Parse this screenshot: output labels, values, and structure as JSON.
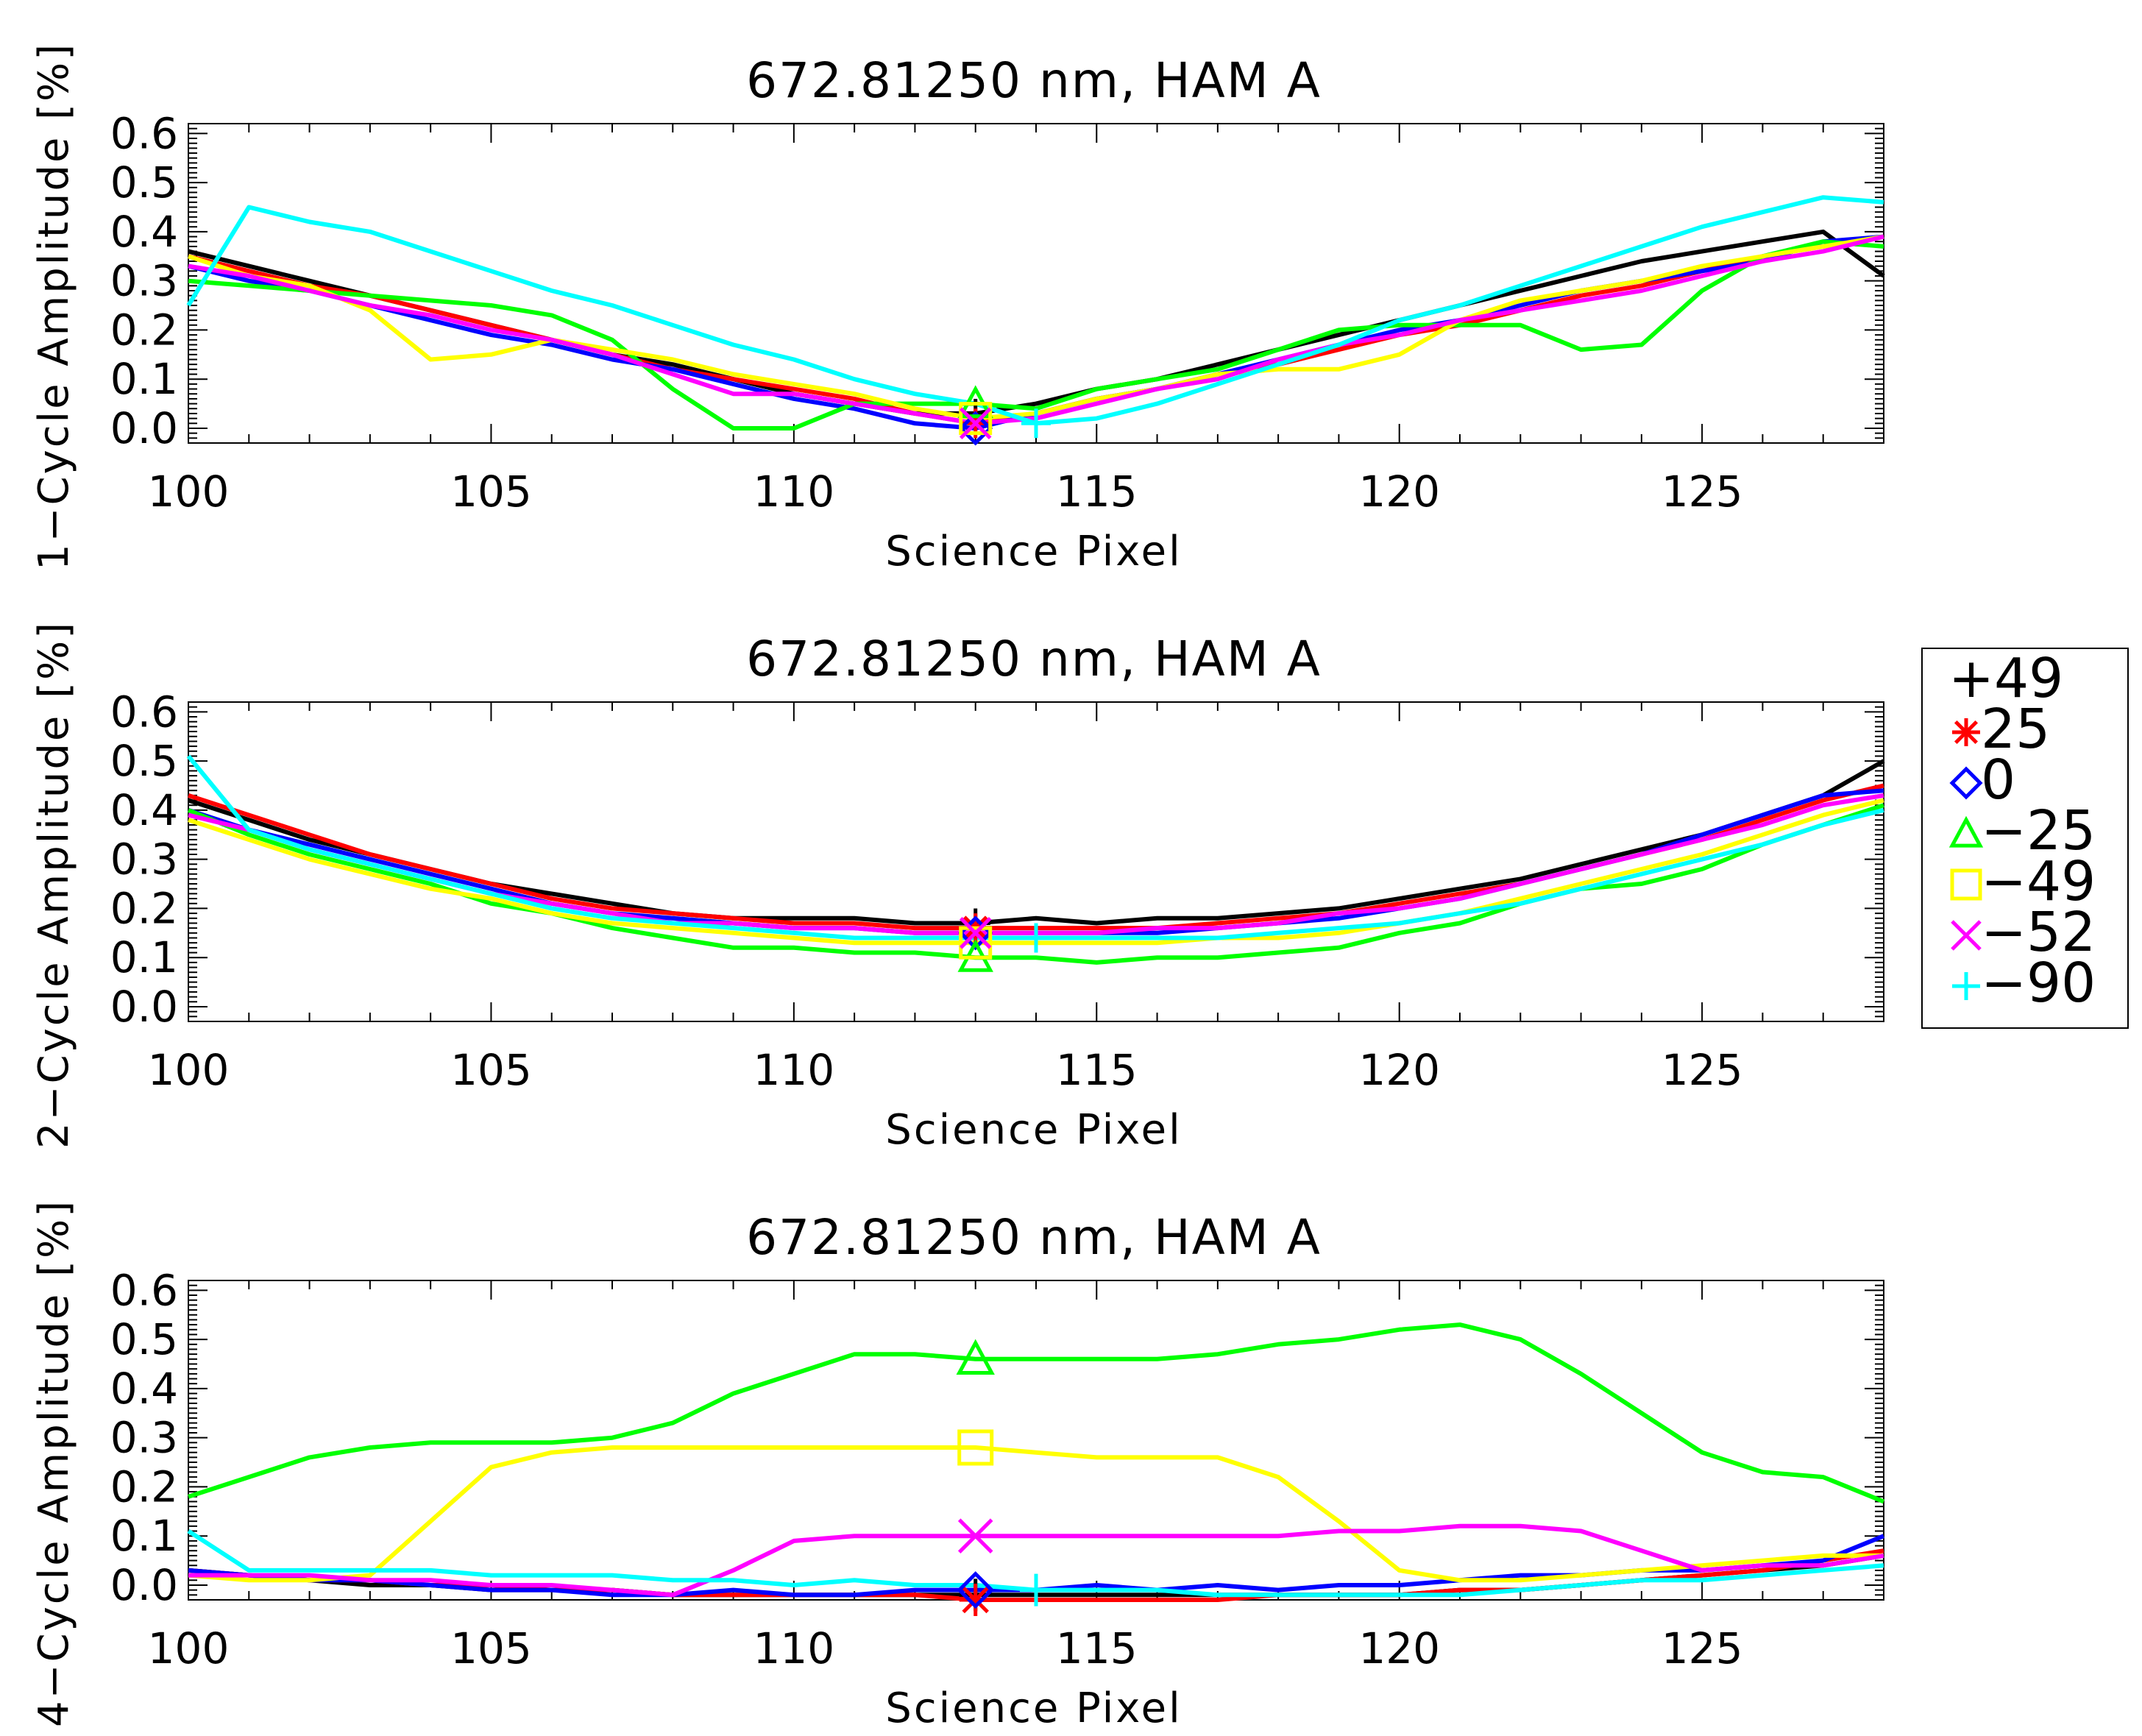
{
  "chart_data": [
    {
      "type": "line",
      "title": "672.81250 nm, HAM A",
      "xlabel": "Science Pixel",
      "ylabel": "1−Cycle Amplitude [%]",
      "xlim": [
        100,
        128
      ],
      "ylim": [
        -0.03,
        0.62
      ],
      "xticks": [
        100,
        105,
        110,
        115,
        120,
        125
      ],
      "yticks": [
        0.0,
        0.1,
        0.2,
        0.3,
        0.4,
        0.5,
        0.6
      ],
      "x": [
        100,
        101,
        102,
        103,
        104,
        105,
        106,
        107,
        108,
        109,
        110,
        111,
        112,
        113,
        114,
        115,
        116,
        117,
        118,
        119,
        120,
        121,
        122,
        123,
        124,
        125,
        126,
        127,
        128
      ],
      "marker_x": 113,
      "series": [
        {
          "name": "+49",
          "color": "#000000",
          "marker": "plus",
          "values": [
            0.36,
            0.33,
            0.3,
            0.27,
            0.24,
            0.21,
            0.18,
            0.15,
            0.13,
            0.1,
            0.07,
            0.05,
            0.03,
            0.03,
            0.05,
            0.08,
            0.1,
            0.13,
            0.16,
            0.19,
            0.22,
            0.25,
            0.28,
            0.31,
            0.34,
            0.36,
            0.38,
            0.4,
            0.31
          ]
        },
        {
          "name": "25",
          "color": "#ff0000",
          "marker": "asterisk",
          "values": [
            0.35,
            0.32,
            0.29,
            0.27,
            0.24,
            0.21,
            0.18,
            0.15,
            0.12,
            0.1,
            0.08,
            0.06,
            0.03,
            0.01,
            0.03,
            0.06,
            0.08,
            0.11,
            0.13,
            0.16,
            0.19,
            0.21,
            0.24,
            0.27,
            0.29,
            0.32,
            0.35,
            0.37,
            0.39
          ]
        },
        {
          "name": "0",
          "color": "#0000ff",
          "marker": "diamond",
          "values": [
            0.33,
            0.3,
            0.28,
            0.25,
            0.22,
            0.19,
            0.17,
            0.14,
            0.12,
            0.09,
            0.06,
            0.04,
            0.01,
            0.0,
            0.03,
            0.06,
            0.08,
            0.11,
            0.14,
            0.17,
            0.2,
            0.22,
            0.25,
            0.28,
            0.3,
            0.32,
            0.34,
            0.38,
            0.39
          ]
        },
        {
          "name": "−25",
          "color": "#00ff00",
          "marker": "triangle",
          "values": [
            0.3,
            0.29,
            0.28,
            0.27,
            0.26,
            0.25,
            0.23,
            0.18,
            0.08,
            0.0,
            0.0,
            0.05,
            0.05,
            0.05,
            0.04,
            0.08,
            0.1,
            0.12,
            0.16,
            0.2,
            0.21,
            0.21,
            0.21,
            0.16,
            0.17,
            0.28,
            0.35,
            0.38,
            0.37
          ]
        },
        {
          "name": "−49",
          "color": "#ffff00",
          "marker": "square",
          "values": [
            0.35,
            0.31,
            0.29,
            0.24,
            0.14,
            0.15,
            0.18,
            0.16,
            0.14,
            0.11,
            0.09,
            0.07,
            0.04,
            0.02,
            0.03,
            0.06,
            0.08,
            0.11,
            0.12,
            0.12,
            0.15,
            0.22,
            0.26,
            0.28,
            0.3,
            0.33,
            0.35,
            0.37,
            0.39
          ]
        },
        {
          "name": "−52",
          "color": "#ff00ff",
          "marker": "cross",
          "values": [
            0.33,
            0.31,
            0.28,
            0.25,
            0.23,
            0.2,
            0.18,
            0.15,
            0.11,
            0.07,
            0.07,
            0.05,
            0.03,
            0.01,
            0.02,
            0.05,
            0.08,
            0.1,
            0.14,
            0.17,
            0.19,
            0.22,
            0.24,
            0.26,
            0.28,
            0.31,
            0.34,
            0.36,
            0.39
          ]
        },
        {
          "name": "−90",
          "color": "#00ffff",
          "marker": "plus",
          "values": [
            0.25,
            0.45,
            0.42,
            0.4,
            0.36,
            0.32,
            0.28,
            0.25,
            0.21,
            0.17,
            0.14,
            0.1,
            0.07,
            0.05,
            0.01,
            0.02,
            0.05,
            0.09,
            0.13,
            0.17,
            0.22,
            0.25,
            0.29,
            0.33,
            0.37,
            0.41,
            0.44,
            0.47,
            0.46
          ]
        }
      ]
    },
    {
      "type": "line",
      "title": "672.81250 nm, HAM A",
      "xlabel": "Science Pixel",
      "ylabel": "2−Cycle Amplitude [%]",
      "xlim": [
        100,
        128
      ],
      "ylim": [
        -0.03,
        0.62
      ],
      "xticks": [
        100,
        105,
        110,
        115,
        120,
        125
      ],
      "yticks": [
        0.0,
        0.1,
        0.2,
        0.3,
        0.4,
        0.5,
        0.6
      ],
      "x": [
        100,
        101,
        102,
        103,
        104,
        105,
        106,
        107,
        108,
        109,
        110,
        111,
        112,
        113,
        114,
        115,
        116,
        117,
        118,
        119,
        120,
        121,
        122,
        123,
        124,
        125,
        126,
        127,
        128
      ],
      "marker_x": 113,
      "series": [
        {
          "name": "+49",
          "color": "#000000",
          "marker": "plus",
          "values": [
            0.42,
            0.38,
            0.34,
            0.31,
            0.28,
            0.25,
            0.23,
            0.21,
            0.19,
            0.18,
            0.18,
            0.18,
            0.17,
            0.17,
            0.18,
            0.17,
            0.18,
            0.18,
            0.19,
            0.2,
            0.22,
            0.24,
            0.26,
            0.29,
            0.32,
            0.35,
            0.39,
            0.43,
            0.5
          ]
        },
        {
          "name": "25",
          "color": "#ff0000",
          "marker": "asterisk",
          "values": [
            0.43,
            0.39,
            0.35,
            0.31,
            0.28,
            0.25,
            0.22,
            0.2,
            0.19,
            0.18,
            0.17,
            0.17,
            0.16,
            0.16,
            0.16,
            0.16,
            0.16,
            0.17,
            0.18,
            0.19,
            0.21,
            0.23,
            0.25,
            0.28,
            0.31,
            0.34,
            0.38,
            0.42,
            0.45
          ]
        },
        {
          "name": "0",
          "color": "#0000ff",
          "marker": "diamond",
          "values": [
            0.4,
            0.36,
            0.33,
            0.3,
            0.27,
            0.24,
            0.21,
            0.19,
            0.18,
            0.17,
            0.16,
            0.16,
            0.15,
            0.15,
            0.15,
            0.15,
            0.15,
            0.16,
            0.17,
            0.18,
            0.2,
            0.22,
            0.25,
            0.28,
            0.31,
            0.35,
            0.39,
            0.43,
            0.44
          ]
        },
        {
          "name": "−25",
          "color": "#00ff00",
          "marker": "triangle",
          "values": [
            0.4,
            0.35,
            0.31,
            0.28,
            0.25,
            0.21,
            0.19,
            0.16,
            0.14,
            0.12,
            0.12,
            0.11,
            0.11,
            0.1,
            0.1,
            0.09,
            0.1,
            0.1,
            0.11,
            0.12,
            0.15,
            0.17,
            0.21,
            0.24,
            0.25,
            0.28,
            0.33,
            0.37,
            0.41
          ]
        },
        {
          "name": "−49",
          "color": "#ffff00",
          "marker": "square",
          "values": [
            0.38,
            0.34,
            0.3,
            0.27,
            0.24,
            0.22,
            0.19,
            0.17,
            0.16,
            0.15,
            0.14,
            0.13,
            0.13,
            0.13,
            0.13,
            0.13,
            0.13,
            0.14,
            0.14,
            0.15,
            0.17,
            0.19,
            0.22,
            0.25,
            0.28,
            0.31,
            0.35,
            0.39,
            0.42
          ]
        },
        {
          "name": "−52",
          "color": "#ff00ff",
          "marker": "cross",
          "values": [
            0.39,
            0.36,
            0.32,
            0.29,
            0.26,
            0.23,
            0.21,
            0.19,
            0.17,
            0.17,
            0.16,
            0.16,
            0.15,
            0.15,
            0.15,
            0.15,
            0.16,
            0.16,
            0.17,
            0.19,
            0.2,
            0.22,
            0.25,
            0.28,
            0.31,
            0.34,
            0.37,
            0.41,
            0.43
          ]
        },
        {
          "name": "−90",
          "color": "#00ffff",
          "marker": "plus",
          "values": [
            0.51,
            0.36,
            0.32,
            0.29,
            0.26,
            0.23,
            0.2,
            0.18,
            0.17,
            0.16,
            0.15,
            0.14,
            0.14,
            0.14,
            0.14,
            0.14,
            0.14,
            0.14,
            0.15,
            0.16,
            0.17,
            0.19,
            0.21,
            0.24,
            0.27,
            0.3,
            0.33,
            0.37,
            0.4
          ]
        }
      ]
    },
    {
      "type": "line",
      "title": "672.81250 nm, HAM A",
      "xlabel": "Science Pixel",
      "ylabel": "4−Cycle Amplitude [%]",
      "xlim": [
        100,
        128
      ],
      "ylim": [
        -0.03,
        0.62
      ],
      "xticks": [
        100,
        105,
        110,
        115,
        120,
        125
      ],
      "yticks": [
        0.0,
        0.1,
        0.2,
        0.3,
        0.4,
        0.5,
        0.6
      ],
      "x": [
        100,
        101,
        102,
        103,
        104,
        105,
        106,
        107,
        108,
        109,
        110,
        111,
        112,
        113,
        114,
        115,
        116,
        117,
        118,
        119,
        120,
        121,
        122,
        123,
        124,
        125,
        126,
        127,
        128
      ],
      "marker_x": 113,
      "series": [
        {
          "name": "+49",
          "color": "#000000",
          "marker": "plus",
          "values": [
            0.03,
            0.02,
            0.01,
            0.0,
            0.0,
            -0.01,
            -0.01,
            -0.01,
            -0.02,
            -0.02,
            -0.02,
            -0.02,
            -0.02,
            -0.02,
            -0.02,
            -0.02,
            -0.02,
            -0.02,
            -0.02,
            -0.02,
            -0.02,
            -0.01,
            -0.01,
            0.0,
            0.01,
            0.02,
            0.03,
            0.04,
            0.06
          ]
        },
        {
          "name": "25",
          "color": "#ff0000",
          "marker": "asterisk",
          "values": [
            0.03,
            0.02,
            0.01,
            0.01,
            0.0,
            0.0,
            -0.01,
            -0.01,
            -0.02,
            -0.02,
            -0.02,
            -0.02,
            -0.02,
            -0.03,
            -0.03,
            -0.03,
            -0.03,
            -0.03,
            -0.02,
            -0.02,
            -0.02,
            -0.01,
            -0.01,
            0.0,
            0.01,
            0.02,
            0.03,
            0.05,
            0.07
          ]
        },
        {
          "name": "0",
          "color": "#0000ff",
          "marker": "diamond",
          "values": [
            0.03,
            0.02,
            0.01,
            0.01,
            0.0,
            -0.01,
            -0.01,
            -0.02,
            -0.02,
            -0.01,
            -0.02,
            -0.02,
            -0.01,
            -0.01,
            -0.01,
            0.0,
            -0.01,
            0.0,
            -0.01,
            0.0,
            0.0,
            0.01,
            0.02,
            0.02,
            0.03,
            0.03,
            0.04,
            0.05,
            0.1
          ]
        },
        {
          "name": "−25",
          "color": "#00ff00",
          "marker": "triangle",
          "values": [
            0.18,
            0.22,
            0.26,
            0.28,
            0.29,
            0.29,
            0.29,
            0.3,
            0.33,
            0.39,
            0.43,
            0.47,
            0.47,
            0.46,
            0.46,
            0.46,
            0.46,
            0.47,
            0.49,
            0.5,
            0.52,
            0.53,
            0.5,
            0.43,
            0.35,
            0.27,
            0.23,
            0.22,
            0.17
          ]
        },
        {
          "name": "−49",
          "color": "#ffff00",
          "marker": "square",
          "values": [
            0.02,
            0.01,
            0.01,
            0.02,
            0.13,
            0.24,
            0.27,
            0.28,
            0.28,
            0.28,
            0.28,
            0.28,
            0.28,
            0.28,
            0.27,
            0.26,
            0.26,
            0.26,
            0.22,
            0.13,
            0.03,
            0.01,
            0.01,
            0.02,
            0.03,
            0.04,
            0.05,
            0.06,
            0.06
          ]
        },
        {
          "name": "−52",
          "color": "#ff00ff",
          "marker": "cross",
          "values": [
            0.02,
            0.02,
            0.02,
            0.01,
            0.01,
            0.0,
            0.0,
            -0.01,
            -0.02,
            0.03,
            0.09,
            0.1,
            0.1,
            0.1,
            0.1,
            0.1,
            0.1,
            0.1,
            0.1,
            0.11,
            0.11,
            0.12,
            0.12,
            0.11,
            0.07,
            0.03,
            0.04,
            0.04,
            0.06
          ]
        },
        {
          "name": "−90",
          "color": "#00ffff",
          "marker": "plus",
          "values": [
            0.11,
            0.03,
            0.03,
            0.03,
            0.03,
            0.02,
            0.02,
            0.02,
            0.01,
            0.01,
            0.0,
            0.01,
            0.0,
            0.0,
            -0.01,
            -0.01,
            -0.01,
            -0.02,
            -0.02,
            -0.02,
            -0.02,
            -0.02,
            -0.01,
            0.0,
            0.01,
            0.01,
            0.02,
            0.03,
            0.04
          ]
        }
      ]
    }
  ],
  "legend": {
    "placement": "right",
    "entries": [
      {
        "label": "+49",
        "color": "#000000",
        "marker": "plus"
      },
      {
        "label": "25",
        "color": "#ff0000",
        "marker": "asterisk"
      },
      {
        "label": "0",
        "color": "#0000ff",
        "marker": "diamond"
      },
      {
        "label": "−25",
        "color": "#00ff00",
        "marker": "triangle"
      },
      {
        "label": "−49",
        "color": "#ffff00",
        "marker": "square"
      },
      {
        "label": "−52",
        "color": "#ff00ff",
        "marker": "cross"
      },
      {
        "label": "−90",
        "color": "#00ffff",
        "marker": "plus"
      }
    ]
  }
}
